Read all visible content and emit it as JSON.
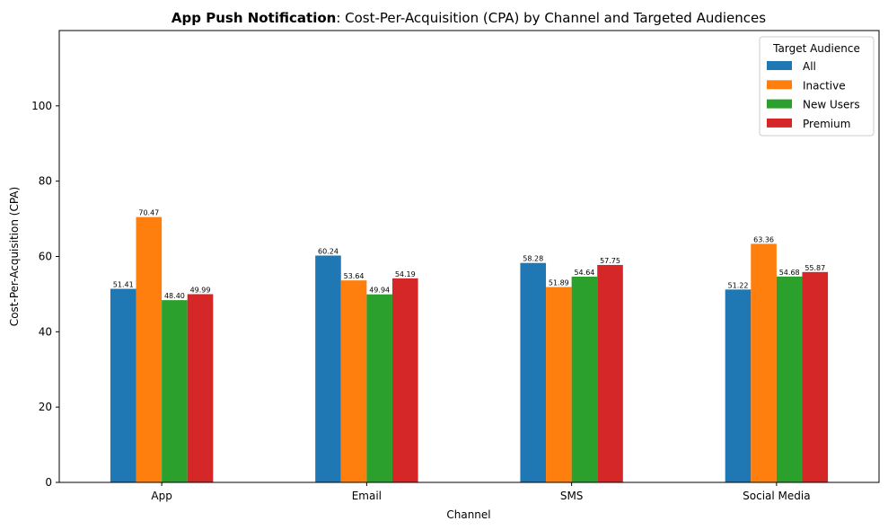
{
  "chart_data": {
    "type": "bar",
    "title_bold": "App Push Notification",
    "title_rest": ": Cost-Per-Acquisition (CPA) by Channel and Targeted Audiences",
    "xlabel": "Channel",
    "ylabel": "Cost-Per-Acquisition (CPA)",
    "categories": [
      "App",
      "Email",
      "SMS",
      "Social Media"
    ],
    "ylim": [
      0,
      120
    ],
    "yticks": [
      0,
      20,
      40,
      60,
      80,
      100
    ],
    "grid": false,
    "legend": {
      "title": "Target Audience",
      "placement": "top-right"
    },
    "series": [
      {
        "name": "All",
        "color": "#1f77b4",
        "values": [
          51.41,
          60.24,
          58.28,
          51.22
        ]
      },
      {
        "name": "Inactive",
        "color": "#ff7f0e",
        "values": [
          70.47,
          53.64,
          51.89,
          63.36
        ]
      },
      {
        "name": "New Users",
        "color": "#2ca02c",
        "values": [
          48.4,
          49.94,
          54.64,
          54.68
        ]
      },
      {
        "name": "Premium",
        "color": "#d62728",
        "values": [
          49.99,
          54.19,
          57.75,
          55.87
        ]
      }
    ]
  }
}
